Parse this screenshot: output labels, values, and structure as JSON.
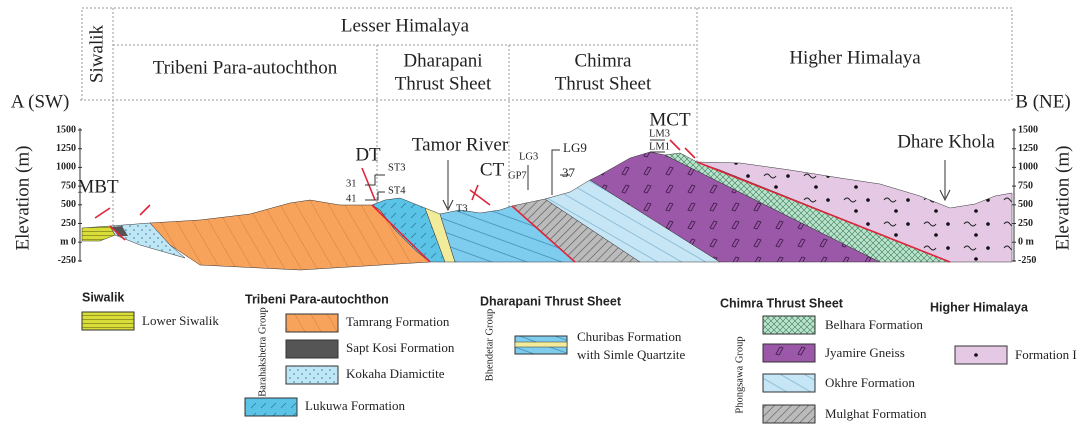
{
  "header": {
    "lesser": "Lesser Himalaya",
    "siwalik": "Siwalik",
    "tribeni": "Tribeni Para-autochthon",
    "dharapani": [
      "Dharapani",
      "Thrust Sheet"
    ],
    "chimra": [
      "Chimra",
      "Thrust Sheet"
    ],
    "higher": "Higher Himalaya"
  },
  "ends": {
    "a": "A (SW)",
    "b": "B (NE)"
  },
  "axis": {
    "label": "Elevation (m)",
    "left_ticks": [
      "1500",
      "1250",
      "1000",
      "750",
      "500",
      "250",
      "m 0",
      "-250"
    ],
    "right_ticks": [
      "1500",
      "1250",
      "1000",
      "750",
      "500",
      "250",
      "0 m",
      "-250"
    ]
  },
  "annotations": {
    "mbt": "MBT",
    "dt": "DT",
    "n31": "31",
    "n41": "41",
    "st3": "ST3",
    "st4": "ST4",
    "tamor": "Tamor River",
    "ct": "CT",
    "t3": "T3",
    "gp7": "GP7",
    "lg3": "LG3",
    "lg9": "LG9",
    "n37": "37",
    "mct": "MCT",
    "lm3": "LM3",
    "lm1": "LM1",
    "dhare": "Dhare Khola"
  },
  "legend": {
    "siwalik": {
      "title": "Siwalik",
      "items": [
        "Lower Siwalik"
      ]
    },
    "tribeni": {
      "title": "Tribeni Para-autochthon",
      "group": "Barahakshetra Group",
      "items": [
        "Tamrang Formation",
        "Sapt Kosi Formation",
        "Kokaha Diamictite",
        "Lukuwa Formation"
      ]
    },
    "dharapani": {
      "title": "Dharapani Thrust Sheet",
      "group": "Bhendetar Group",
      "items": [
        "Churibas Formation",
        "with Simle Quartzite"
      ]
    },
    "chimra": {
      "title": "Chimra Thrust Sheet",
      "group": "Phongsawa Group",
      "items": [
        "Belhara Formation",
        "Jyamire Gneiss",
        "Okhre Formation",
        "Mulghat Formation"
      ]
    },
    "higher": {
      "title": "Higher Himalaya",
      "items": [
        "Formation I"
      ]
    }
  }
}
